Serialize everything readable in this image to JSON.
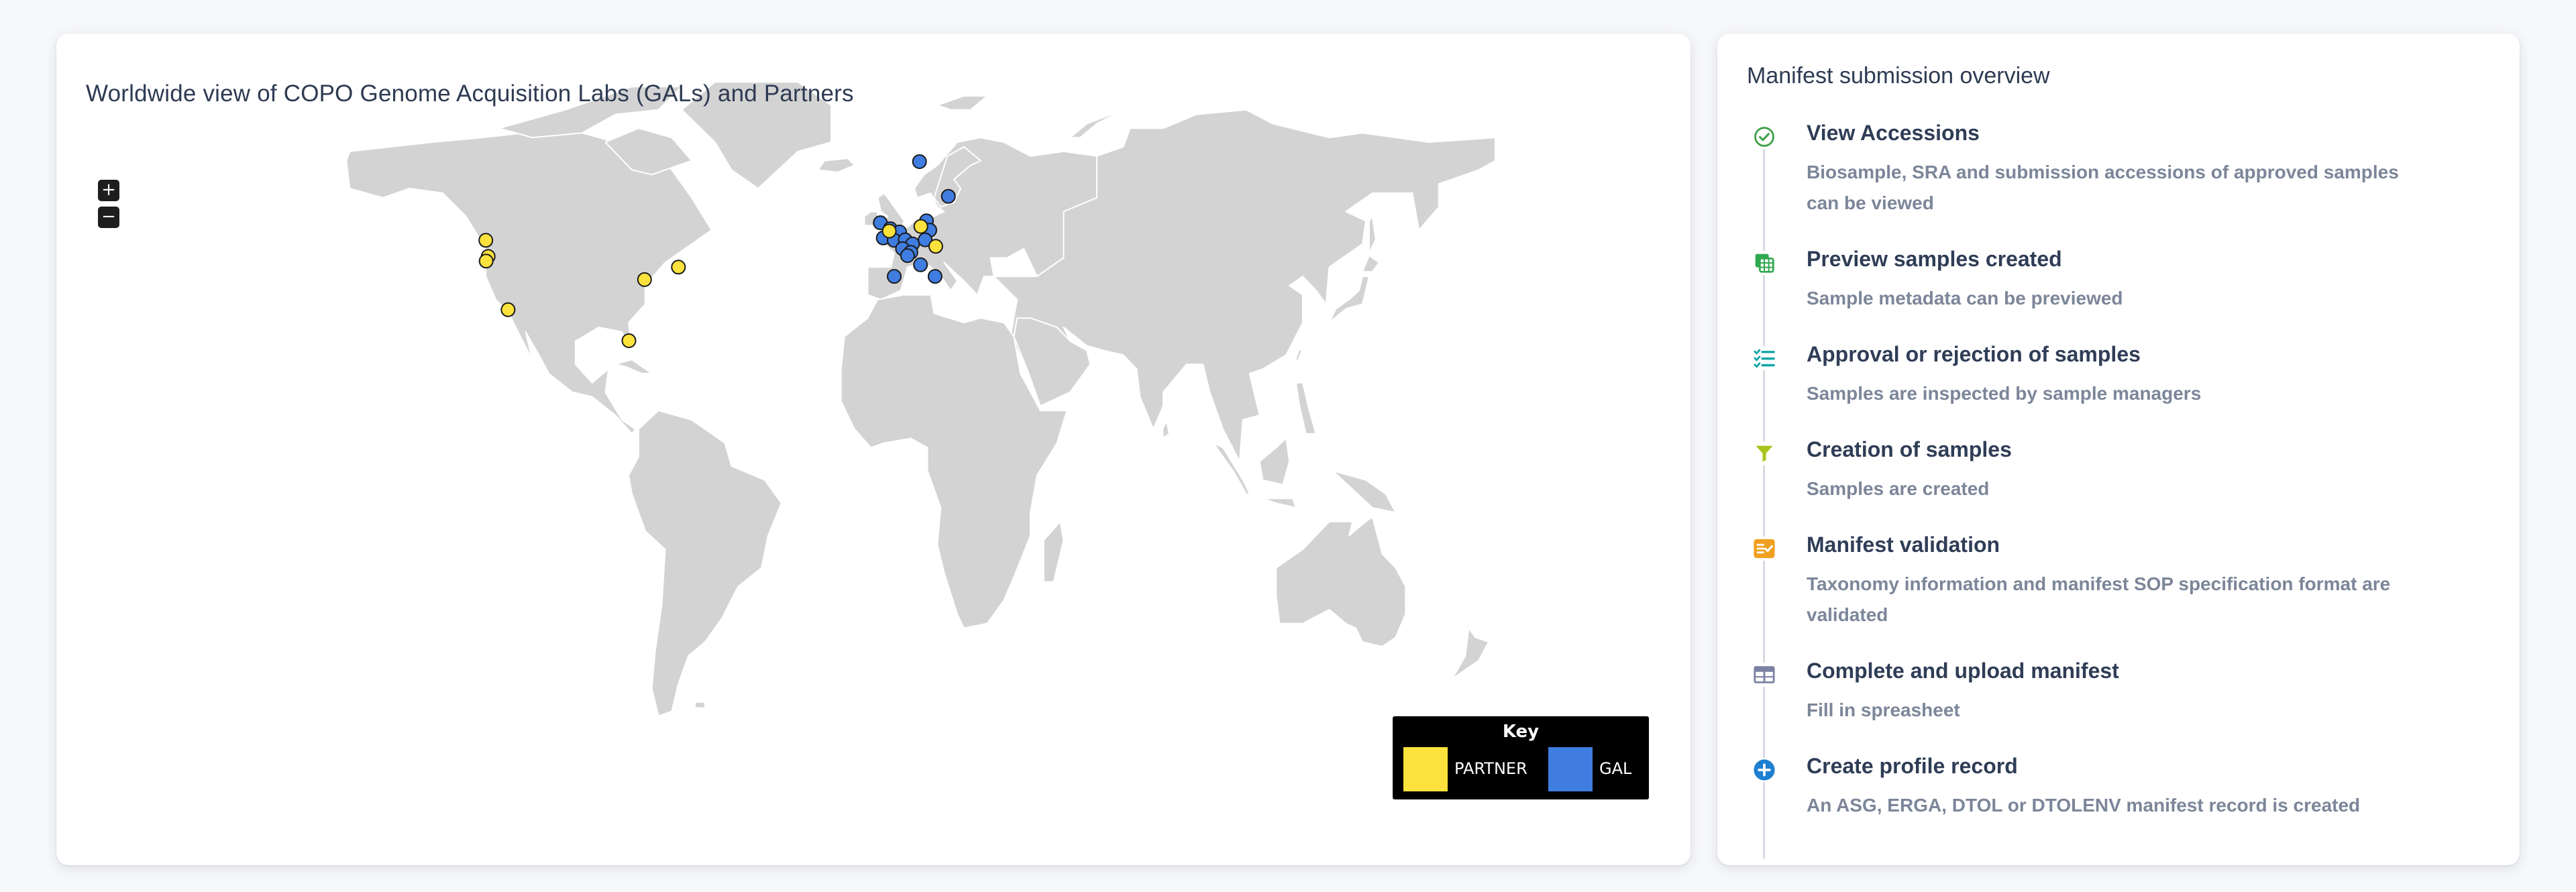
{
  "map_card": {
    "title": "Worldwide view of COPO Genome Acquisition Labs (GALs) and Partners",
    "zoom_in_label": "+",
    "zoom_out_label": "−",
    "key": {
      "title": "Key",
      "partner_label": "PARTNER",
      "gal_label": "GAL",
      "partner_color": "#fbe23c",
      "gal_color": "#3f7de0"
    },
    "land_color": "#d3d3d3",
    "locations": [
      {
        "type": "GAL",
        "lon": 6.6,
        "lat": 65.8
      },
      {
        "type": "GAL",
        "lon": 15.3,
        "lat": 58.3
      },
      {
        "type": "GAL",
        "lon": -5.2,
        "lat": 52.6
      },
      {
        "type": "GAL",
        "lon": -2.2,
        "lat": 51.3
      },
      {
        "type": "GAL",
        "lon": -1.7,
        "lat": 50.2
      },
      {
        "type": "GAL",
        "lon": 0.6,
        "lat": 50.6
      },
      {
        "type": "GAL",
        "lon": -4.3,
        "lat": 49.3
      },
      {
        "type": "GAL",
        "lon": -1.0,
        "lat": 48.8
      },
      {
        "type": "GAL",
        "lon": 2.3,
        "lat": 48.9
      },
      {
        "type": "GAL",
        "lon": 4.5,
        "lat": 48.0
      },
      {
        "type": "GAL",
        "lon": 1.5,
        "lat": 47.0
      },
      {
        "type": "GAL",
        "lon": 4.0,
        "lat": 46.2
      },
      {
        "type": "GAL",
        "lon": 3.0,
        "lat": 45.5
      },
      {
        "type": "GAL",
        "lon": 8.7,
        "lat": 53.0
      },
      {
        "type": "GAL",
        "lon": 9.7,
        "lat": 51.0
      },
      {
        "type": "GAL",
        "lon": 8.3,
        "lat": 48.9
      },
      {
        "type": "GAL",
        "lon": -1.0,
        "lat": 41.0
      },
      {
        "type": "GAL",
        "lon": 6.9,
        "lat": 43.5
      },
      {
        "type": "GAL",
        "lon": 11.3,
        "lat": 41.0
      },
      {
        "type": "PARTNER",
        "lon": 7.0,
        "lat": 51.8
      },
      {
        "type": "PARTNER",
        "lon": 11.5,
        "lat": 47.5
      },
      {
        "type": "PARTNER",
        "lon": -2.5,
        "lat": 50.8
      },
      {
        "type": "PARTNER",
        "lon": -124.0,
        "lat": 48.8
      },
      {
        "type": "PARTNER",
        "lon": -123.3,
        "lat": 45.3
      },
      {
        "type": "PARTNER",
        "lon": -123.9,
        "lat": 44.3
      },
      {
        "type": "PARTNER",
        "lon": -117.3,
        "lat": 33.8
      },
      {
        "type": "PARTNER",
        "lon": -76.2,
        "lat": 40.3
      },
      {
        "type": "PARTNER",
        "lon": -66.0,
        "lat": 43.0
      },
      {
        "type": "PARTNER",
        "lon": -80.9,
        "lat": 27.1
      }
    ]
  },
  "timeline_card": {
    "title": "Manifest submission overview",
    "steps": [
      {
        "icon": "check-circle-icon",
        "color": "#3fa14a",
        "title": "View Accessions",
        "desc": "Biosample, SRA and submission accessions of approved samples can be viewed"
      },
      {
        "icon": "copy-grid-icon",
        "color": "#2fa84f",
        "title": "Preview samples created",
        "desc": "Sample metadata can be previewed"
      },
      {
        "icon": "list-check-icon",
        "color": "#14a6a6",
        "title": "Approval or rejection of samples",
        "desc": "Samples are inspected by sample managers"
      },
      {
        "icon": "funnel-icon",
        "color": "#a6c41a",
        "title": "Creation of samples",
        "desc": "Samples are created"
      },
      {
        "icon": "checklist-icon",
        "color": "#f0a020",
        "title": "Manifest validation",
        "desc": "Taxonomy information and manifest SOP specification format are validated"
      },
      {
        "icon": "table-icon",
        "color": "#7b82a4",
        "title": "Complete and upload manifest",
        "desc": "Fill in spreasheet"
      },
      {
        "icon": "plus-circle-icon",
        "color": "#1f7fd1",
        "title": "Create profile record",
        "desc": "An ASG, ERGA, DTOL or DTOLENV manifest record is created"
      }
    ]
  }
}
